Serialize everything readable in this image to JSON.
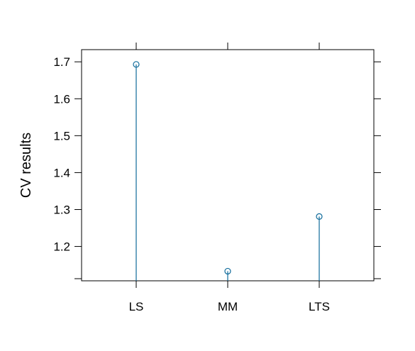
{
  "chart_data": {
    "type": "scatter",
    "style": "lollipop",
    "title": "",
    "xlabel": "",
    "ylabel": "CV results",
    "categories": [
      "LS",
      "MM",
      "LTS"
    ],
    "values": [
      1.693,
      1.133,
      1.281
    ],
    "yticks": [
      1.2,
      1.3,
      1.4,
      1.5,
      1.6,
      1.7
    ],
    "ytick_labels": [
      "1.2",
      "1.3",
      "1.4",
      "1.5",
      "1.6",
      "1.7"
    ],
    "ylim": [
      1.107,
      1.733
    ],
    "grid": false,
    "legend": "none",
    "color": "#0E6A9A"
  }
}
